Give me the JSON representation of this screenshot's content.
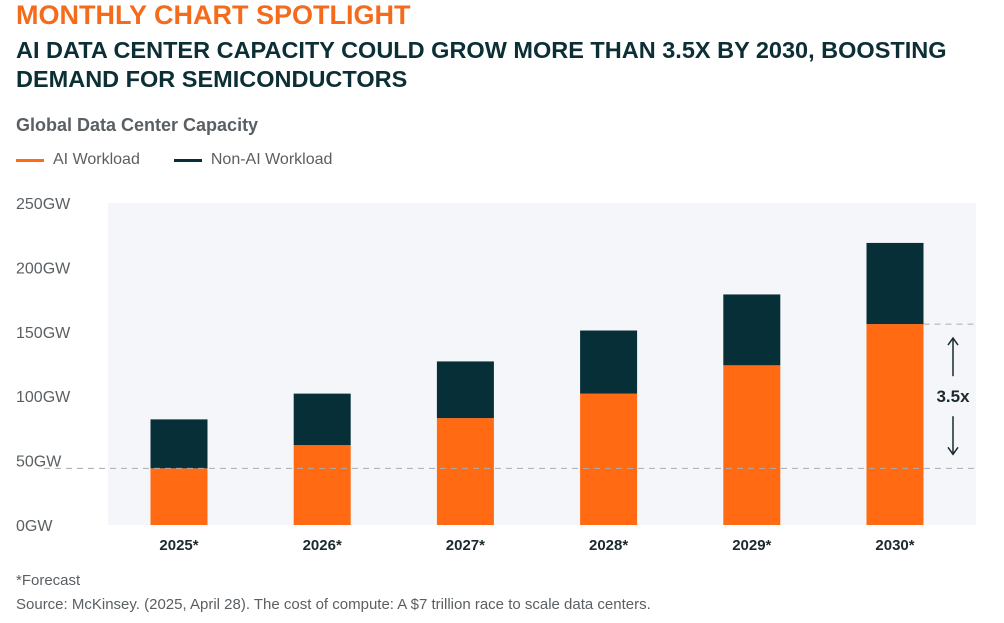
{
  "header": {
    "kicker": "MONTHLY CHART SPOTLIGHT",
    "headline": "AI DATA CENTER CAPACITY COULD GROW MORE THAN 3.5X BY 2030, BOOSTING DEMAND FOR SEMICONDUCTORS"
  },
  "colors": {
    "accent": "#ff6a13",
    "ai": "#ff6a13",
    "non_ai": "#062f38",
    "plot_bg": "#f5f6fa",
    "text": "#5a5f63"
  },
  "chart_data": {
    "type": "bar",
    "stacked": true,
    "title": "Global Data Center Capacity",
    "categories": [
      "2025*",
      "2026*",
      "2027*",
      "2028*",
      "2029*",
      "2030*"
    ],
    "series": [
      {
        "name": "AI Workload",
        "values": [
          44,
          62,
          83,
          102,
          124,
          156
        ]
      },
      {
        "name": "Non-AI Workload",
        "values": [
          38,
          40,
          44,
          49,
          55,
          63
        ]
      }
    ],
    "ylim": [
      0,
      250
    ],
    "yticks": [
      0,
      50,
      100,
      150,
      200,
      250
    ],
    "ytick_labels": [
      "0GW",
      "50GW",
      "100GW",
      "150GW",
      "200GW",
      "250GW"
    ],
    "grid": false,
    "legend": "top-left",
    "annotation": {
      "text": "3.5x",
      "from_value": 44,
      "to_value": 156
    }
  },
  "footer": {
    "footnote": "*Forecast",
    "source": "Source: McKinsey. (2025, April 28). The cost of compute: A $7 trillion race to scale data centers."
  }
}
